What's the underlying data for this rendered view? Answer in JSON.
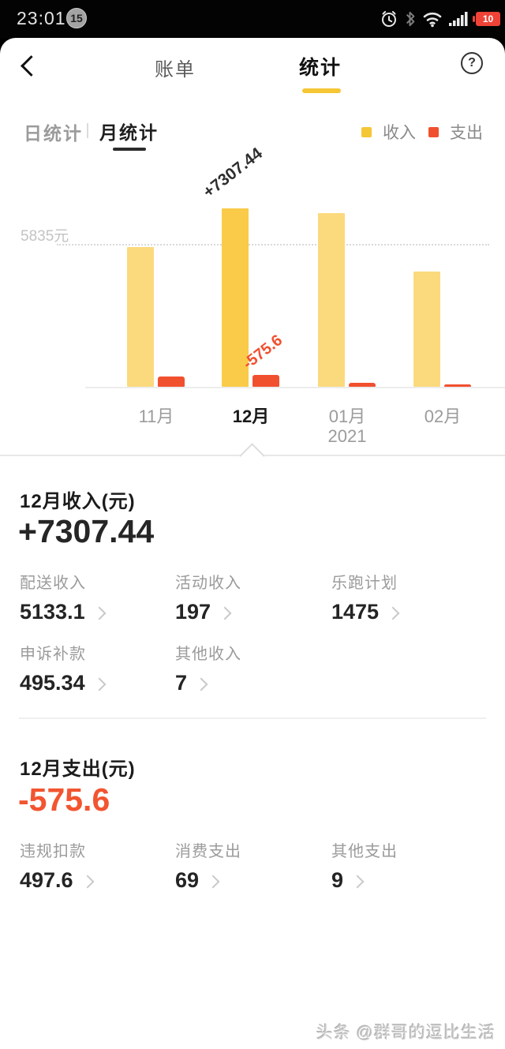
{
  "status_bar": {
    "time": "23:01",
    "badge_count": "15",
    "battery_percent": "10"
  },
  "header": {
    "bill_tab": "账单",
    "stats_tab": "统计",
    "help": "?"
  },
  "tabs": {
    "daily": "日统计",
    "monthly": "月统计"
  },
  "legend": {
    "income": "收入",
    "expense": "支出"
  },
  "colors": {
    "accent_yellow": "#F5C636",
    "income_bar_selected": "#FACB49",
    "income_bar_dim": "#FBDA7E",
    "expense_bar": "#F1502F",
    "expense_text": "#F25530"
  },
  "chart_data": {
    "type": "bar",
    "categories": [
      "11月",
      "12月",
      "01月",
      "02月"
    ],
    "x_sub_label": "2021",
    "series": [
      {
        "name": "收入",
        "values": [
          5720,
          7307.44,
          7110,
          4720
        ]
      },
      {
        "name": "支出",
        "values": [
          -500,
          -575.6,
          -190,
          -120
        ]
      }
    ],
    "selected_index": 1,
    "labels": {
      "income": "+7307.44",
      "expense": "-575.6"
    },
    "gridline": {
      "value": 5835,
      "label": "5835元"
    },
    "legend_position": "top-right",
    "note": "only 12月 values are labeled on chart; other months estimated from bar heights"
  },
  "income_section": {
    "title": "12月收入(元)",
    "total": "+7307.44",
    "items": [
      {
        "label": "配送收入",
        "value": "5133.1"
      },
      {
        "label": "活动收入",
        "value": "197"
      },
      {
        "label": "乐跑计划",
        "value": "1475"
      },
      {
        "label": "申诉补款",
        "value": "495.34"
      },
      {
        "label": "其他收入",
        "value": "7"
      }
    ]
  },
  "expense_section": {
    "title": "12月支出(元)",
    "total": "-575.6",
    "items": [
      {
        "label": "违规扣款",
        "value": "497.6"
      },
      {
        "label": "消费支出",
        "value": "69"
      },
      {
        "label": "其他支出",
        "value": "9"
      }
    ]
  },
  "watermark": "头条 @群哥的逗比生活"
}
